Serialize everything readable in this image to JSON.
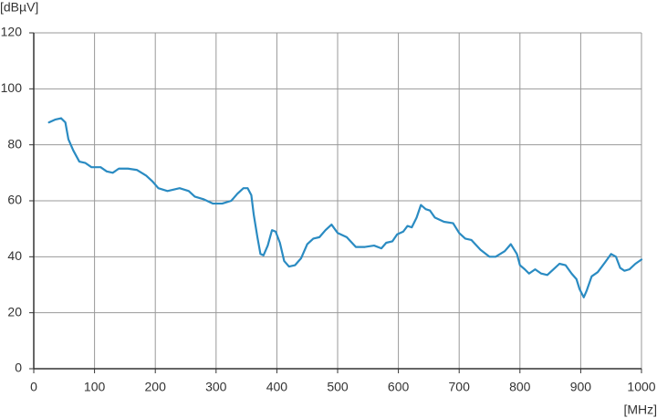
{
  "chart_data": {
    "type": "line",
    "y_label": "[dBµV]",
    "x_label": "[MHz]",
    "x": [
      25,
      35,
      45,
      52,
      57,
      65,
      75,
      85,
      95,
      110,
      120,
      130,
      140,
      155,
      170,
      185,
      195,
      205,
      220,
      240,
      255,
      265,
      280,
      295,
      310,
      325,
      335,
      345,
      352,
      358,
      362,
      368,
      373,
      378,
      385,
      392,
      398,
      405,
      412,
      420,
      430,
      440,
      450,
      460,
      470,
      480,
      490,
      500,
      515,
      530,
      545,
      560,
      572,
      580,
      590,
      598,
      608,
      615,
      622,
      630,
      637,
      645,
      652,
      660,
      675,
      690,
      700,
      710,
      720,
      735,
      750,
      760,
      775,
      785,
      795,
      800,
      808,
      815,
      825,
      835,
      845,
      855,
      865,
      875,
      885,
      893,
      898,
      905,
      910,
      918,
      928,
      940,
      950,
      958,
      965,
      972,
      980,
      990,
      1000
    ],
    "values": [
      88,
      89,
      89.5,
      88,
      82,
      78,
      74,
      73.5,
      72,
      72,
      70.5,
      70,
      71.5,
      71.5,
      71,
      69,
      67,
      64.5,
      63.5,
      64.5,
      63.5,
      61.5,
      60.5,
      59,
      59,
      60,
      62.5,
      64.5,
      64.5,
      62,
      55,
      47,
      41,
      40.5,
      44,
      49.5,
      49,
      45,
      38.5,
      36.5,
      37,
      39.5,
      44.5,
      46.5,
      47,
      49.5,
      51.5,
      48.5,
      47,
      43.5,
      43.5,
      44,
      43,
      45,
      45.5,
      48,
      49,
      51,
      50.5,
      54,
      58.5,
      57,
      56.5,
      54,
      52.5,
      52,
      48.5,
      46.5,
      46,
      42.5,
      40,
      40,
      42,
      44.5,
      41,
      37,
      35.5,
      34,
      35.5,
      34,
      33.5,
      35.5,
      37.5,
      37,
      34,
      32,
      28.5,
      25.5,
      28,
      33,
      34.5,
      38,
      41,
      40,
      36,
      35,
      35.5,
      37.5,
      39
    ],
    "color": "#2a8bc2",
    "xlim": [
      0,
      1000
    ],
    "xticks": [
      0,
      100,
      200,
      300,
      400,
      500,
      600,
      700,
      800,
      900,
      1000
    ],
    "ylim": [
      0,
      120
    ],
    "yticks": [
      0,
      20,
      40,
      60,
      80,
      100,
      120
    ],
    "grid": true
  }
}
